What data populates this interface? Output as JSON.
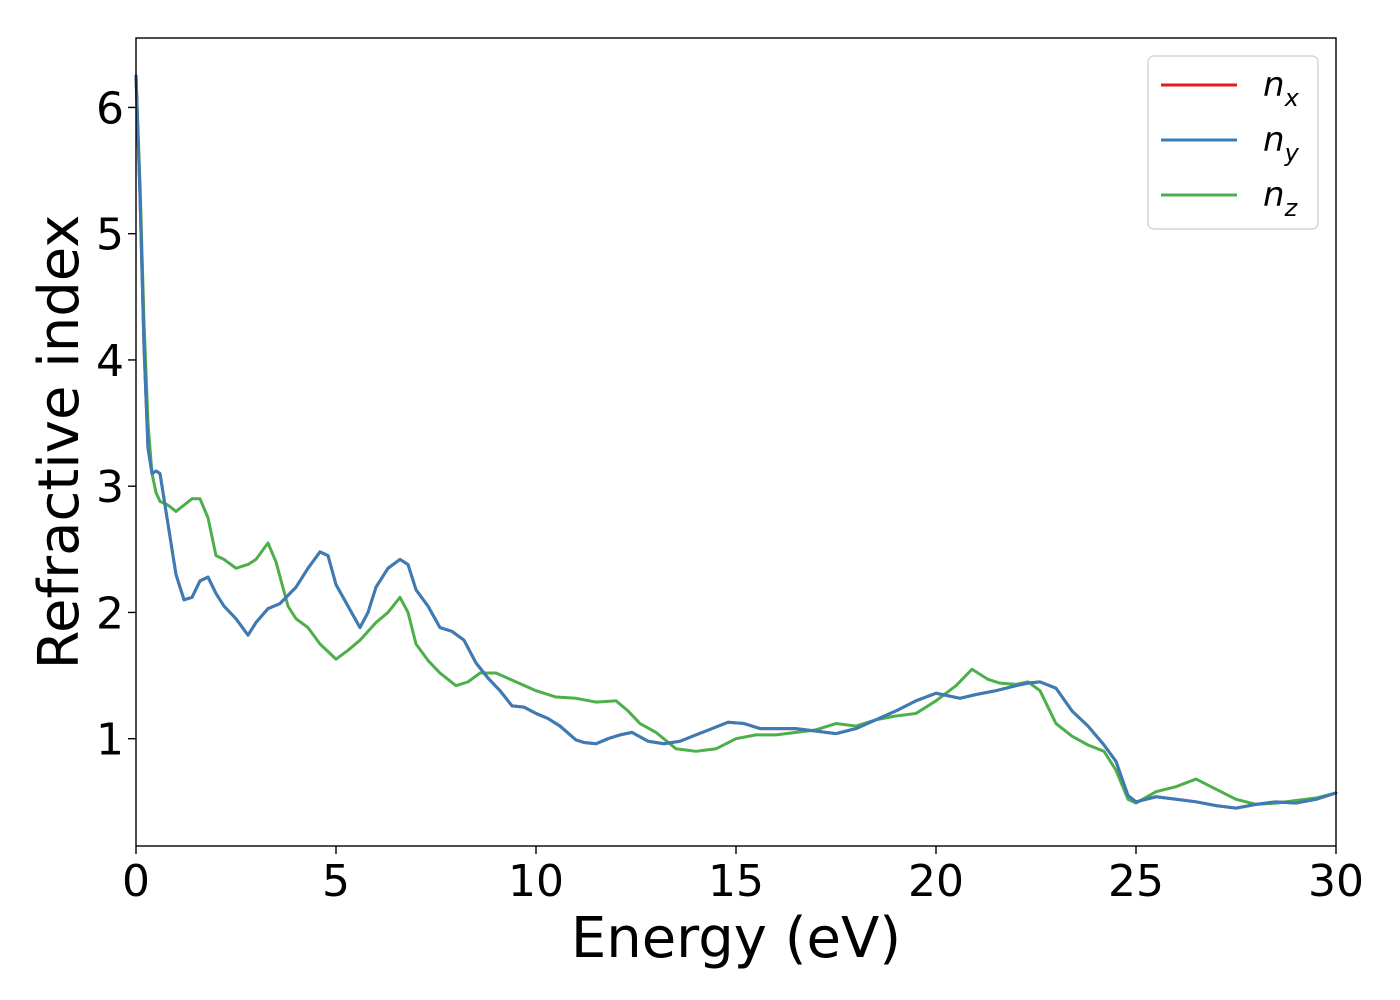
{
  "chart_data": {
    "type": "line",
    "xlabel": "Energy (eV)",
    "ylabel": "Refractive index",
    "xlim": [
      0,
      30
    ],
    "ylim": [
      0.15,
      6.55
    ],
    "xticks": [
      0,
      5,
      10,
      15,
      20,
      25,
      30
    ],
    "yticks": [
      1,
      2,
      3,
      4,
      5,
      6
    ],
    "grid": false,
    "legend_position": "top-right",
    "series": [
      {
        "name": "n_x",
        "legend_main": "n",
        "legend_sub": "x",
        "color": "#e41a1c",
        "x": [
          0,
          0.1,
          0.2,
          0.3,
          0.4,
          0.5,
          0.6,
          0.8,
          1.0,
          1.2,
          1.4,
          1.6,
          1.8,
          2.0,
          2.2,
          2.5,
          2.8,
          3.0,
          3.3,
          3.6,
          4.0,
          4.3,
          4.6,
          4.8,
          5.0,
          5.3,
          5.6,
          5.8,
          6.0,
          6.3,
          6.6,
          6.8,
          7.0,
          7.3,
          7.6,
          7.9,
          8.2,
          8.5,
          8.8,
          9.1,
          9.4,
          9.7,
          10.0,
          10.3,
          10.6,
          11.0,
          11.2,
          11.5,
          11.8,
          12.1,
          12.4,
          12.8,
          13.2,
          13.6,
          14.0,
          14.4,
          14.8,
          15.2,
          15.6,
          16.0,
          16.5,
          17.0,
          17.5,
          18.0,
          18.5,
          19.0,
          19.5,
          20.0,
          20.3,
          20.6,
          21.0,
          21.5,
          22.0,
          22.3,
          22.6,
          23.0,
          23.4,
          23.8,
          24.2,
          24.5,
          24.8,
          25.0,
          25.5,
          26.0,
          26.5,
          27.0,
          27.5,
          28.0,
          28.5,
          29.0,
          29.5,
          30.0
        ],
        "values": [
          6.25,
          5.3,
          4.1,
          3.3,
          3.1,
          3.12,
          3.1,
          2.7,
          2.3,
          2.1,
          2.12,
          2.25,
          2.28,
          2.15,
          2.05,
          1.95,
          1.82,
          1.92,
          2.03,
          2.07,
          2.2,
          2.35,
          2.48,
          2.45,
          2.22,
          2.05,
          1.88,
          2.0,
          2.2,
          2.35,
          2.42,
          2.38,
          2.18,
          2.05,
          1.88,
          1.85,
          1.78,
          1.6,
          1.48,
          1.38,
          1.26,
          1.25,
          1.2,
          1.16,
          1.1,
          0.99,
          0.97,
          0.96,
          1.0,
          1.03,
          1.05,
          0.98,
          0.96,
          0.98,
          1.03,
          1.08,
          1.13,
          1.12,
          1.08,
          1.08,
          1.08,
          1.06,
          1.04,
          1.08,
          1.15,
          1.22,
          1.3,
          1.36,
          1.34,
          1.32,
          1.35,
          1.38,
          1.42,
          1.44,
          1.45,
          1.4,
          1.22,
          1.1,
          0.95,
          0.82,
          0.55,
          0.5,
          0.54,
          0.52,
          0.5,
          0.47,
          0.45,
          0.48,
          0.5,
          0.49,
          0.52,
          0.57
        ]
      },
      {
        "name": "n_y",
        "legend_main": "n",
        "legend_sub": "y",
        "color": "#377eb8",
        "x": [
          0,
          0.1,
          0.2,
          0.3,
          0.4,
          0.5,
          0.6,
          0.8,
          1.0,
          1.2,
          1.4,
          1.6,
          1.8,
          2.0,
          2.2,
          2.5,
          2.8,
          3.0,
          3.3,
          3.6,
          4.0,
          4.3,
          4.6,
          4.8,
          5.0,
          5.3,
          5.6,
          5.8,
          6.0,
          6.3,
          6.6,
          6.8,
          7.0,
          7.3,
          7.6,
          7.9,
          8.2,
          8.5,
          8.8,
          9.1,
          9.4,
          9.7,
          10.0,
          10.3,
          10.6,
          11.0,
          11.2,
          11.5,
          11.8,
          12.1,
          12.4,
          12.8,
          13.2,
          13.6,
          14.0,
          14.4,
          14.8,
          15.2,
          15.6,
          16.0,
          16.5,
          17.0,
          17.5,
          18.0,
          18.5,
          19.0,
          19.5,
          20.0,
          20.3,
          20.6,
          21.0,
          21.5,
          22.0,
          22.3,
          22.6,
          23.0,
          23.4,
          23.8,
          24.2,
          24.5,
          24.8,
          25.0,
          25.5,
          26.0,
          26.5,
          27.0,
          27.5,
          28.0,
          28.5,
          29.0,
          29.5,
          30.0
        ],
        "values": [
          6.25,
          5.3,
          4.1,
          3.3,
          3.1,
          3.12,
          3.1,
          2.7,
          2.3,
          2.1,
          2.12,
          2.25,
          2.28,
          2.15,
          2.05,
          1.95,
          1.82,
          1.92,
          2.03,
          2.07,
          2.2,
          2.35,
          2.48,
          2.45,
          2.22,
          2.05,
          1.88,
          2.0,
          2.2,
          2.35,
          2.42,
          2.38,
          2.18,
          2.05,
          1.88,
          1.85,
          1.78,
          1.6,
          1.48,
          1.38,
          1.26,
          1.25,
          1.2,
          1.16,
          1.1,
          0.99,
          0.97,
          0.96,
          1.0,
          1.03,
          1.05,
          0.98,
          0.96,
          0.98,
          1.03,
          1.08,
          1.13,
          1.12,
          1.08,
          1.08,
          1.08,
          1.06,
          1.04,
          1.08,
          1.15,
          1.22,
          1.3,
          1.36,
          1.34,
          1.32,
          1.35,
          1.38,
          1.42,
          1.44,
          1.45,
          1.4,
          1.22,
          1.1,
          0.95,
          0.82,
          0.55,
          0.5,
          0.54,
          0.52,
          0.5,
          0.47,
          0.45,
          0.48,
          0.5,
          0.49,
          0.52,
          0.57
        ]
      },
      {
        "name": "n_z",
        "legend_main": "n",
        "legend_sub": "z",
        "color": "#4daf4a",
        "x": [
          0,
          0.1,
          0.2,
          0.3,
          0.4,
          0.5,
          0.6,
          0.8,
          1.0,
          1.2,
          1.4,
          1.6,
          1.8,
          2.0,
          2.2,
          2.5,
          2.8,
          3.0,
          3.3,
          3.5,
          3.8,
          4.0,
          4.3,
          4.6,
          5.0,
          5.3,
          5.6,
          5.8,
          6.0,
          6.3,
          6.6,
          6.8,
          7.0,
          7.3,
          7.6,
          8.0,
          8.3,
          8.6,
          9.0,
          9.5,
          10.0,
          10.5,
          11.0,
          11.5,
          12.0,
          12.3,
          12.6,
          13.0,
          13.5,
          14.0,
          14.5,
          15.0,
          15.5,
          16.0,
          16.5,
          17.0,
          17.5,
          18.0,
          18.5,
          19.0,
          19.5,
          20.0,
          20.5,
          20.9,
          21.3,
          21.6,
          22.0,
          22.3,
          22.6,
          23.0,
          23.4,
          23.8,
          24.2,
          24.5,
          24.8,
          25.0,
          25.5,
          26.0,
          26.5,
          27.0,
          27.5,
          28.0,
          28.5,
          29.0,
          29.5,
          30.0
        ],
        "values": [
          6.25,
          5.4,
          4.3,
          3.5,
          3.1,
          2.95,
          2.88,
          2.85,
          2.8,
          2.85,
          2.9,
          2.9,
          2.75,
          2.45,
          2.42,
          2.35,
          2.38,
          2.42,
          2.55,
          2.4,
          2.05,
          1.95,
          1.88,
          1.75,
          1.63,
          1.7,
          1.78,
          1.85,
          1.92,
          2.0,
          2.12,
          2.0,
          1.75,
          1.62,
          1.52,
          1.42,
          1.45,
          1.52,
          1.52,
          1.45,
          1.38,
          1.33,
          1.32,
          1.29,
          1.3,
          1.22,
          1.12,
          1.05,
          0.92,
          0.9,
          0.92,
          1.0,
          1.03,
          1.03,
          1.05,
          1.07,
          1.12,
          1.1,
          1.15,
          1.18,
          1.2,
          1.3,
          1.42,
          1.55,
          1.47,
          1.44,
          1.43,
          1.45,
          1.38,
          1.12,
          1.02,
          0.95,
          0.9,
          0.75,
          0.52,
          0.49,
          0.58,
          0.62,
          0.68,
          0.6,
          0.52,
          0.48,
          0.49,
          0.51,
          0.53,
          0.57
        ]
      }
    ]
  }
}
